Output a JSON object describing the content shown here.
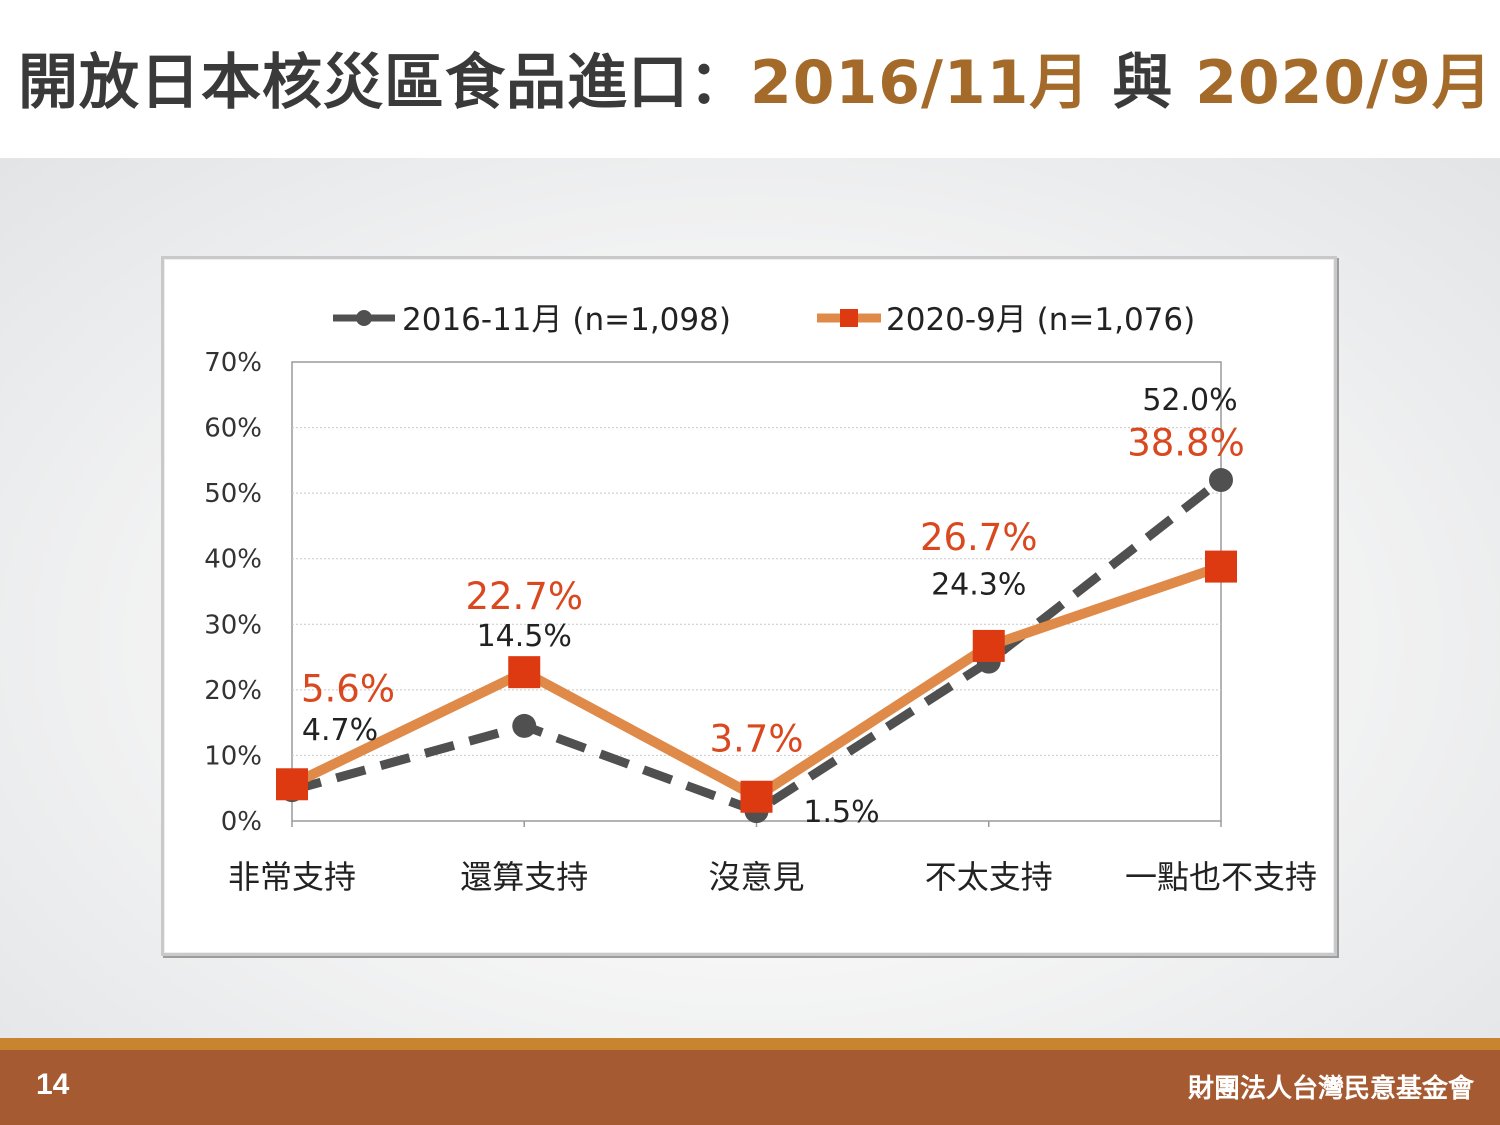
{
  "title": {
    "main": "開放日本核災區食品進口：",
    "date1": "2016/11月",
    "connector": " 與 ",
    "date2": "2020/9月"
  },
  "footer": {
    "page_number": "14",
    "organization": "財團法人台灣民意基金會"
  },
  "colors": {
    "series_2016": "#505050",
    "series_2020_line": "#e08a4a",
    "series_2020_marker": "#dd3a12",
    "label_2020": "#d9481e",
    "title_accent": "#a46a2a",
    "footer": "#a55a31"
  },
  "chart_data": {
    "type": "line",
    "categories": [
      "非常支持",
      "還算支持",
      "沒意見",
      "不太支持",
      "一點也不支持"
    ],
    "series": [
      {
        "name": "2016-11月 (n=1,098)",
        "values": [
          4.7,
          14.5,
          1.5,
          24.3,
          52.0
        ],
        "labels": [
          "4.7%",
          "14.5%",
          "1.5%",
          "24.3%",
          "52.0%"
        ],
        "style": "dashed",
        "marker": "circle"
      },
      {
        "name": "2020-9月 (n=1,076)",
        "values": [
          5.6,
          22.7,
          3.7,
          26.7,
          38.8
        ],
        "labels": [
          "5.6%",
          "22.7%",
          "3.7%",
          "26.7%",
          "38.8%"
        ],
        "style": "solid",
        "marker": "square"
      }
    ],
    "yticks": [
      "0%",
      "10%",
      "20%",
      "30%",
      "40%",
      "50%",
      "60%",
      "70%"
    ],
    "ylim": [
      0,
      70
    ],
    "grid": true,
    "legend": "top"
  }
}
